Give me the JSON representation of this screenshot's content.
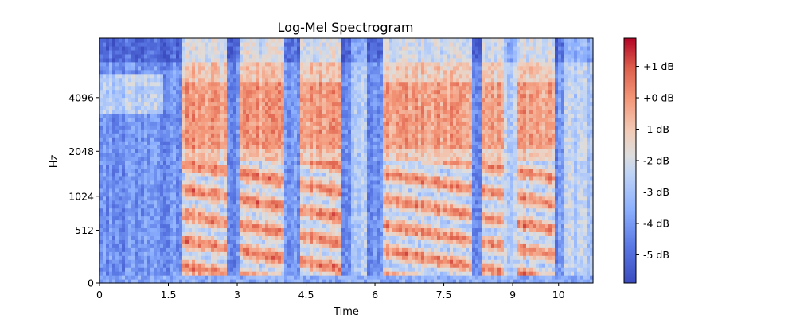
{
  "chart_data": {
    "type": "heatmap",
    "title": "Log-Mel Spectrogram",
    "xlabel": "Time",
    "ylabel": "Hz",
    "x_ticks": [
      "0",
      "1.5",
      "3",
      "4.5",
      "6",
      "7.5",
      "9",
      "10"
    ],
    "x_tick_values": [
      0,
      1.5,
      3,
      4.5,
      6,
      7.5,
      9,
      10
    ],
    "xlim": [
      0,
      10.75
    ],
    "y_ticks": [
      "0",
      "512",
      "1024",
      "2048",
      "4096"
    ],
    "y_tick_values": [
      0,
      512,
      1024,
      2048,
      4096
    ],
    "y_scale": "mel",
    "colorbar": {
      "label_ticks": [
        "+1 dB",
        "+0 dB",
        "-1 dB",
        "-2 dB",
        "-3 dB",
        "-4 dB",
        "-5 dB"
      ],
      "tick_values": [
        1,
        0,
        -1,
        -2,
        -3,
        -4,
        -5
      ],
      "range": [
        -5.9,
        1.9
      ],
      "colormap": "coolwarm",
      "color_low": "#3b4cc0",
      "color_mid": "#dddddd",
      "color_high": "#b40426"
    },
    "segments": [
      {
        "t0": 0.0,
        "t1": 1.8,
        "level": "low"
      },
      {
        "t0": 1.8,
        "t1": 2.8,
        "level": "high"
      },
      {
        "t0": 2.8,
        "t1": 3.05,
        "level": "low"
      },
      {
        "t0": 3.05,
        "t1": 4.05,
        "level": "high"
      },
      {
        "t0": 4.05,
        "t1": 4.35,
        "level": "low"
      },
      {
        "t0": 4.35,
        "t1": 5.3,
        "level": "high"
      },
      {
        "t0": 5.3,
        "t1": 5.45,
        "level": "low"
      },
      {
        "t0": 5.45,
        "t1": 5.8,
        "level": "mid"
      },
      {
        "t0": 5.8,
        "t1": 6.2,
        "level": "low"
      },
      {
        "t0": 6.2,
        "t1": 7.2,
        "level": "high"
      },
      {
        "t0": 7.2,
        "t1": 8.1,
        "level": "high"
      },
      {
        "t0": 8.1,
        "t1": 8.3,
        "level": "low"
      },
      {
        "t0": 8.3,
        "t1": 8.8,
        "level": "high"
      },
      {
        "t0": 8.8,
        "t1": 9.1,
        "level": "mid"
      },
      {
        "t0": 9.1,
        "t1": 9.9,
        "level": "high"
      },
      {
        "t0": 9.9,
        "t1": 10.1,
        "level": "low"
      },
      {
        "t0": 10.1,
        "t1": 10.75,
        "level": "mid"
      }
    ]
  }
}
